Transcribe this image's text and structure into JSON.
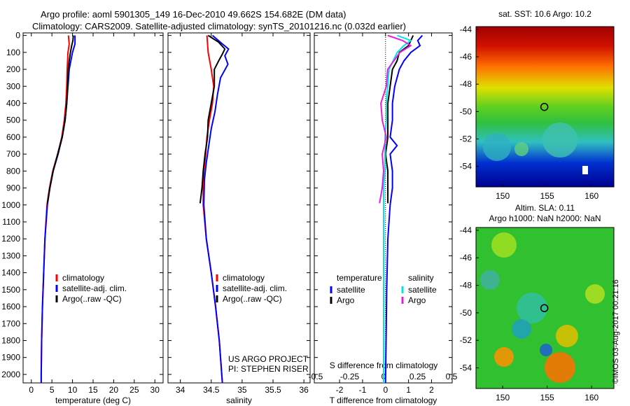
{
  "title_line1": "Argo profile: aoml 5901305_149 16-Dec-2010 49.662S 154.682E (DM data)",
  "title_line2": "Climatology: CARS2009. Satellite-adjusted climatology: synTS_20101216.nc (0.032d earlier)",
  "colors": {
    "climatology": "#ff0000",
    "satellite": "#0000ff",
    "argo": "#000000",
    "sal_sat": "#00e5e5",
    "sal_argo": "#e020e0"
  },
  "chart_data": [
    {
      "type": "line",
      "id": "temperature",
      "xlabel": "temperature (deg C)",
      "ylabel": "",
      "xlim": [
        -2,
        32
      ],
      "ylim": [
        2050,
        -15
      ],
      "xticks": [
        0,
        5,
        10,
        15,
        20,
        25,
        30
      ],
      "yticks": [
        0,
        100,
        200,
        300,
        400,
        500,
        600,
        700,
        800,
        900,
        1000,
        1100,
        1200,
        1300,
        1400,
        1500,
        1600,
        1700,
        1800,
        1900,
        2000
      ],
      "legend": [
        "climatology",
        "satellite-adj. clim.",
        "Argo(..raw -QC)"
      ],
      "series": [
        {
          "name": "climatology",
          "color": "#ff0000",
          "depth": [
            0,
            50,
            100,
            200,
            300,
            400,
            500,
            600,
            700,
            800,
            900,
            1000,
            1200,
            1400,
            1600,
            1800,
            2000,
            2050
          ],
          "values": [
            9.0,
            9.2,
            8.9,
            8.7,
            8.6,
            8.4,
            8.0,
            7.4,
            6.4,
            5.2,
            4.4,
            3.8,
            3.3,
            3.0,
            2.7,
            2.5,
            2.4,
            2.4
          ]
        },
        {
          "name": "satellite-adj. clim.",
          "color": "#0000ff",
          "depth": [
            0,
            50,
            100,
            200,
            300,
            400,
            500,
            600,
            700,
            800,
            900,
            1000,
            1200,
            1400,
            1600,
            1800,
            2000,
            2050
          ],
          "values": [
            10.6,
            10.6,
            10.0,
            9.2,
            8.9,
            8.6,
            8.2,
            7.5,
            6.5,
            5.3,
            4.5,
            3.9,
            3.3,
            3.0,
            2.7,
            2.5,
            2.4,
            2.4
          ]
        },
        {
          "name": "Argo(..raw -QC)",
          "color": "#000000",
          "depth": [
            0,
            30,
            60,
            100,
            150,
            200,
            300,
            400,
            500,
            600,
            700,
            800,
            900,
            990
          ],
          "values": [
            10.2,
            10.1,
            9.8,
            9.5,
            9.2,
            9.0,
            8.8,
            8.6,
            8.2,
            7.5,
            6.4,
            5.3,
            4.5,
            3.9
          ]
        }
      ]
    },
    {
      "type": "line",
      "id": "salinity",
      "xlabel": "salinity",
      "xlim": [
        33.8,
        36.1
      ],
      "ylim": [
        2050,
        -15
      ],
      "xticks": [
        34,
        34.5,
        35,
        35.5,
        36
      ],
      "legend": [
        "climatology",
        "satellite-adj. clim.",
        "Argo(..raw -QC)"
      ],
      "annotation": [
        "US ARGO PROJECT",
        "PI: STEPHEN RISER"
      ],
      "series": [
        {
          "name": "climatology",
          "color": "#ff0000",
          "depth": [
            0,
            50,
            100,
            200,
            300,
            400,
            500,
            600,
            700,
            800,
            900,
            1000,
            1200,
            1400,
            1600,
            1800,
            2000,
            2050
          ],
          "values": [
            34.43,
            34.44,
            34.45,
            34.5,
            34.54,
            34.52,
            34.47,
            34.43,
            34.41,
            34.38,
            34.37,
            34.37,
            34.42,
            34.5,
            34.57,
            34.63,
            34.67,
            34.68
          ]
        },
        {
          "name": "satellite-adj. clim.",
          "color": "#0000ff",
          "depth": [
            0,
            50,
            80,
            120,
            170,
            250,
            350,
            450,
            550,
            650,
            750,
            850,
            1000,
            1200,
            1400,
            1600,
            1800,
            2000,
            2050
          ],
          "values": [
            34.52,
            34.68,
            34.78,
            34.72,
            34.77,
            34.65,
            34.6,
            34.56,
            34.5,
            34.46,
            34.42,
            34.39,
            34.38,
            34.42,
            34.5,
            34.57,
            34.63,
            34.67,
            34.68
          ]
        },
        {
          "name": "Argo(..raw -QC)",
          "color": "#000000",
          "depth": [
            0,
            40,
            80,
            110,
            150,
            200,
            300,
            400,
            500,
            600,
            700,
            800,
            900,
            990
          ],
          "values": [
            34.45,
            34.62,
            34.72,
            34.68,
            34.62,
            34.55,
            34.55,
            34.5,
            34.45,
            34.44,
            34.4,
            34.37,
            34.35,
            34.32
          ]
        }
      ]
    },
    {
      "type": "line",
      "id": "difference",
      "xlabel": "T difference from climatology",
      "top_xlabel": "S difference from climatology",
      "xlim": [
        -3.1,
        2.9
      ],
      "ylim": [
        2050,
        -15
      ],
      "xticks": [
        -2,
        -1,
        0,
        1,
        2
      ],
      "top_xticks": [
        -0.5,
        -0.25,
        0,
        0.25,
        0.5
      ],
      "legend_headers": [
        "temperature",
        "salinity"
      ],
      "legend": [
        "satellite",
        "Argo",
        "satellite",
        "Argo"
      ],
      "series": [
        {
          "name": "T satellite",
          "color": "#0000ff",
          "depth": [
            0,
            30,
            60,
            100,
            150,
            200,
            300,
            400,
            500,
            600,
            650,
            700,
            800,
            900,
            1000,
            1200,
            1500,
            2050
          ],
          "values": [
            1.6,
            1.4,
            1.5,
            1.1,
            0.8,
            0.6,
            0.4,
            0.3,
            0.3,
            0.2,
            0.5,
            0.2,
            0.3,
            0.3,
            0.2,
            0.1,
            0.05,
            0.0
          ]
        },
        {
          "name": "T Argo",
          "color": "#000000",
          "depth": [
            0,
            30,
            60,
            100,
            150,
            200,
            300,
            400,
            500,
            600,
            700,
            800,
            900,
            990
          ],
          "values": [
            1.2,
            1.1,
            1.0,
            0.6,
            0.5,
            0.3,
            0.2,
            0.1,
            0.1,
            0.1,
            0.0,
            0.1,
            0.1,
            0.1
          ]
        },
        {
          "name": "S satellite",
          "color": "#00e5e5",
          "depth": [
            0,
            30,
            60,
            100,
            200,
            300,
            400,
            500,
            600,
            700,
            800,
            900,
            1000,
            1200,
            1500,
            2050
          ],
          "values": [
            0.1,
            0.2,
            0.15,
            0.1,
            0.04,
            0.03,
            0.02,
            0.02,
            0.01,
            0.01,
            0.01,
            0.0,
            0.0,
            0.0,
            0.0,
            0.0
          ]
        },
        {
          "name": "S Argo",
          "color": "#e020e0",
          "depth": [
            0,
            30,
            60,
            100,
            200,
            300,
            400,
            500,
            600,
            700,
            800,
            900,
            990
          ],
          "values": [
            0.03,
            0.14,
            0.2,
            0.12,
            0.03,
            0.02,
            -0.02,
            -0.01,
            0.02,
            -0.01,
            0.0,
            -0.01,
            -0.03
          ]
        }
      ]
    },
    {
      "type": "heatmap",
      "id": "sst_map",
      "title": "sat. SST: 10.6 Argo: 10.2",
      "xticks": [
        150,
        155,
        160
      ],
      "yticks": [
        -44,
        -46,
        -48,
        -50,
        -52,
        -54
      ],
      "xlim": [
        147,
        162.5
      ],
      "ylim": [
        -55.5,
        -43.8
      ],
      "marker": [
        154.682,
        -49.662
      ]
    },
    {
      "type": "heatmap",
      "id": "sla_map",
      "title_line1": "Altim. SLA: 0.11",
      "title_line2": "Argo h1000: NaN h2000: NaN",
      "xticks": [
        150,
        155,
        160
      ],
      "yticks": [
        -44,
        -46,
        -48,
        -50,
        -52,
        -54
      ],
      "xlim": [
        147,
        162.5
      ],
      "ylim": [
        -55.5,
        -43.8
      ],
      "marker": [
        154.682,
        -49.662
      ]
    }
  ],
  "credit": "©IMOS 03-Aug-2017 00:21:16"
}
